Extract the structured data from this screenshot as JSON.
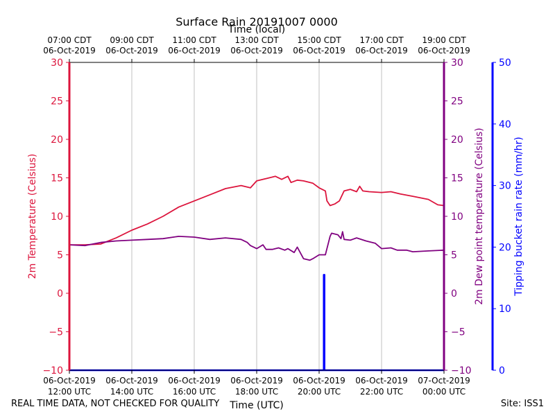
{
  "header": {
    "title": "Surface Rain 20191007 0000"
  },
  "footer": {
    "quality_note": "REAL TIME DATA, NOT CHECKED FOR QUALITY",
    "site": "Site: ISS1"
  },
  "chart_data": {
    "type": "line",
    "title": "Surface Rain 20191007 0000",
    "x_top_label": "Time (local)",
    "x_bottom_label": "Time (UTC)",
    "x_range_hours_utc": [
      12,
      24
    ],
    "x_bottom_ticks": [
      {
        "h": 12,
        "l1": "06-Oct-2019",
        "l2": "12:00 UTC"
      },
      {
        "h": 14,
        "l1": "06-Oct-2019",
        "l2": "14:00 UTC"
      },
      {
        "h": 16,
        "l1": "06-Oct-2019",
        "l2": "16:00 UTC"
      },
      {
        "h": 18,
        "l1": "06-Oct-2019",
        "l2": "18:00 UTC"
      },
      {
        "h": 20,
        "l1": "06-Oct-2019",
        "l2": "20:00 UTC"
      },
      {
        "h": 22,
        "l1": "06-Oct-2019",
        "l2": "22:00 UTC"
      },
      {
        "h": 24,
        "l1": "07-Oct-2019",
        "l2": "00:00 UTC"
      }
    ],
    "x_top_ticks": [
      {
        "h": 12,
        "l1": "07:00 CDT",
        "l2": "06-Oct-2019"
      },
      {
        "h": 14,
        "l1": "09:00 CDT",
        "l2": "06-Oct-2019"
      },
      {
        "h": 16,
        "l1": "11:00 CDT",
        "l2": "06-Oct-2019"
      },
      {
        "h": 18,
        "l1": "13:00 CDT",
        "l2": "06-Oct-2019"
      },
      {
        "h": 20,
        "l1": "15:00 CDT",
        "l2": "06-Oct-2019"
      },
      {
        "h": 22,
        "l1": "17:00 CDT",
        "l2": "06-Oct-2019"
      },
      {
        "h": 24,
        "l1": "19:00 CDT",
        "l2": "06-Oct-2019"
      }
    ],
    "y_left": {
      "label": "2m Temperature (Celsius)",
      "range": [
        -10,
        30
      ],
      "ticks": [
        -10,
        -5,
        0,
        5,
        10,
        15,
        20,
        25,
        30
      ],
      "color": "#dc143c"
    },
    "y_right1": {
      "label": "2m Dew point temperature (Celsius)",
      "range": [
        -10,
        30
      ],
      "ticks": [
        -10,
        -5,
        0,
        5,
        10,
        15,
        20,
        25,
        30
      ],
      "color": "#800080"
    },
    "y_right2": {
      "label": "Tipping bucket rain rate (mm/hr)",
      "range": [
        0,
        50
      ],
      "ticks": [
        0,
        10,
        20,
        30,
        40,
        50
      ],
      "color": "#0000ff"
    },
    "grid": true,
    "series": [
      {
        "name": "2m Temperature",
        "axis": "left",
        "color": "#dc143c",
        "x": [
          12.0,
          12.5,
          13.0,
          13.5,
          14.0,
          14.5,
          15.0,
          15.5,
          16.0,
          16.5,
          17.0,
          17.5,
          17.8,
          18.0,
          18.3,
          18.6,
          18.8,
          19.0,
          19.1,
          19.3,
          19.5,
          19.8,
          20.0,
          20.2,
          20.25,
          20.35,
          20.5,
          20.65,
          20.8,
          21.0,
          21.2,
          21.3,
          21.4,
          21.6,
          22.0,
          22.3,
          22.6,
          23.0,
          23.5,
          23.8,
          24.0
        ],
        "y": [
          6.3,
          6.3,
          6.4,
          7.2,
          8.2,
          9.0,
          10.0,
          11.2,
          12.0,
          12.8,
          13.6,
          14.0,
          13.7,
          14.6,
          14.9,
          15.2,
          14.8,
          15.2,
          14.4,
          14.7,
          14.6,
          14.3,
          13.7,
          13.3,
          12.0,
          11.4,
          11.6,
          12.0,
          13.3,
          13.5,
          13.2,
          13.9,
          13.3,
          13.2,
          13.1,
          13.2,
          12.9,
          12.6,
          12.2,
          11.5,
          11.4
        ]
      },
      {
        "name": "2m Dew point temperature",
        "axis": "right1",
        "color": "#800080",
        "x": [
          12.0,
          12.5,
          13.0,
          13.5,
          14.0,
          14.5,
          15.0,
          15.5,
          16.0,
          16.5,
          17.0,
          17.5,
          17.7,
          17.8,
          18.0,
          18.2,
          18.3,
          18.5,
          18.7,
          18.9,
          19.0,
          19.2,
          19.3,
          19.5,
          19.7,
          19.8,
          20.0,
          20.2,
          20.35,
          20.4,
          20.6,
          20.7,
          20.75,
          20.8,
          21.0,
          21.2,
          21.5,
          21.8,
          22.0,
          22.3,
          22.5,
          22.8,
          23.0,
          23.5,
          24.0
        ],
        "y": [
          6.3,
          6.2,
          6.6,
          6.8,
          6.9,
          7.0,
          7.1,
          7.4,
          7.3,
          7.0,
          7.2,
          7.0,
          6.6,
          6.2,
          5.8,
          6.3,
          5.7,
          5.7,
          5.9,
          5.6,
          5.8,
          5.3,
          6.0,
          4.5,
          4.3,
          4.5,
          5.0,
          5.0,
          7.4,
          7.8,
          7.6,
          7.1,
          8.0,
          7.0,
          6.9,
          7.2,
          6.8,
          6.5,
          5.8,
          5.9,
          5.6,
          5.6,
          5.4,
          5.5,
          5.6
        ]
      },
      {
        "name": "Tipping bucket rain rate",
        "axis": "right2",
        "color": "#0000ff",
        "x": [
          12.0,
          20.15,
          20.15,
          20.17,
          20.17,
          24.0
        ],
        "y": [
          0,
          0,
          15.5,
          15.5,
          0,
          0
        ]
      }
    ]
  }
}
